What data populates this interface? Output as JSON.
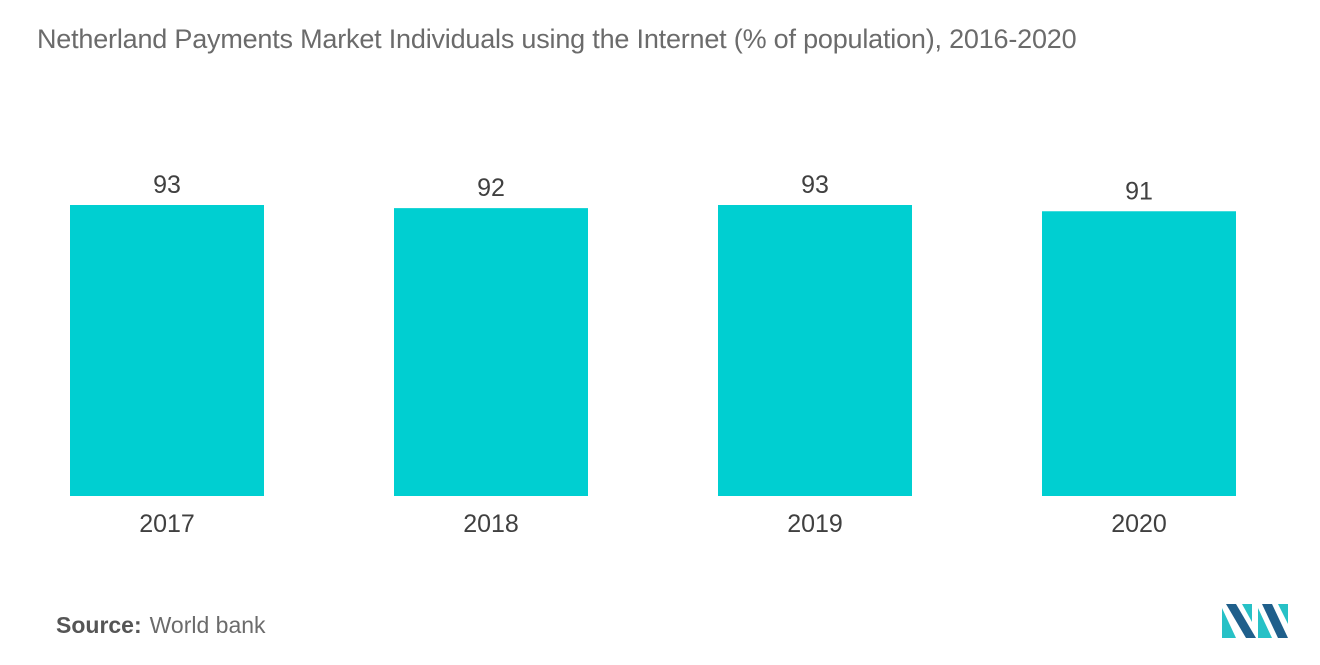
{
  "title": "Netherland Payments Market Individuals using the Internet (% of population), 2016-2020",
  "source": {
    "label": "Source:",
    "value": "World bank"
  },
  "colors": {
    "bar": "#00cfd1",
    "text": "#404040",
    "title": "#6b6b6b",
    "logo_dark": "#1f5f8b",
    "logo_light": "#27c1c6"
  },
  "logo_icon": "mordor-intelligence-logo-icon",
  "chart_data": {
    "type": "bar",
    "categories": [
      "2017",
      "2018",
      "2019",
      "2020"
    ],
    "values": [
      93,
      92,
      93,
      91
    ],
    "title": "Netherland Payments Market Individuals using the Internet (% of population), 2016-2020",
    "xlabel": "",
    "ylabel": "",
    "ylim": [
      0,
      93
    ],
    "grid": false,
    "legend": "none",
    "data_labels": true
  }
}
